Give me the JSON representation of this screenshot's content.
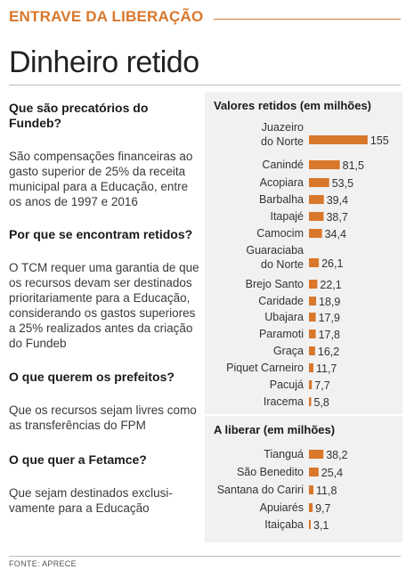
{
  "header": {
    "kicker": "ENTRAVE DA LIBERAÇÃO",
    "title": "Dinheiro retido"
  },
  "qa": [
    {
      "q": "Que são precatórios do Fundeb?",
      "a": "São compensações financeiras ao gasto superior de 25% da receita municipal para a Educação, entre os anos de 1997 e 2016"
    },
    {
      "q": "Por que se encontram retidos?",
      "a": "O TCM requer uma garantia de que os recursos devam ser destinados prioritariamente para a Educação, considerando os gastos superiores a 25% realizados antes da criação do Fundeb"
    },
    {
      "q": "O que querem os prefeitos?",
      "a": "Que os recursos sejam livres como as transferências do FPM"
    },
    {
      "q": "O que quer a Fetamce?",
      "a": "Que sejam destinados exclusi-vamente para a Educação"
    }
  ],
  "source": "FONTE: APRECE",
  "colors": {
    "accent": "#d9772b",
    "bar": "#d9772b",
    "panel": "#f1f1f1"
  },
  "chart_data": [
    {
      "type": "bar",
      "orientation": "horizontal",
      "title": "Valores retidos (em milhões)",
      "categories": [
        "Juazeiro do Norte",
        "Canindé",
        "Acopiara",
        "Barbalha",
        "Itapajé",
        "Camocim",
        "Guaraciaba do Norte",
        "Brejo Santo",
        "Caridade",
        "Ubajara",
        "Paramoti",
        "Graça",
        "Piquet Carneiro",
        "Pacujá",
        "Iracema"
      ],
      "values": [
        155,
        81.5,
        53.5,
        39.4,
        38.7,
        34.4,
        26.1,
        22.1,
        18.9,
        17.9,
        17.8,
        16.2,
        11.7,
        7.7,
        5.8
      ],
      "value_labels": [
        "155",
        "81,5",
        "53,5",
        "39,4",
        "38,7",
        "34,4",
        "26,1",
        "22,1",
        "18,9",
        "17,9",
        "17,8",
        "16,2",
        "11,7",
        "7,7",
        "5,8"
      ],
      "grid": false
    },
    {
      "type": "bar",
      "orientation": "horizontal",
      "title": "A liberar (em milhões)",
      "categories": [
        "Tianguá",
        "São Benedito",
        "Santana do Cariri",
        "Apuiarés",
        "Itaiçaba"
      ],
      "values": [
        38.2,
        25.4,
        11.8,
        9.7,
        3.1
      ],
      "value_labels": [
        "38,2",
        "25,4",
        "11,8",
        "9,7",
        "3,1"
      ],
      "grid": false
    }
  ]
}
